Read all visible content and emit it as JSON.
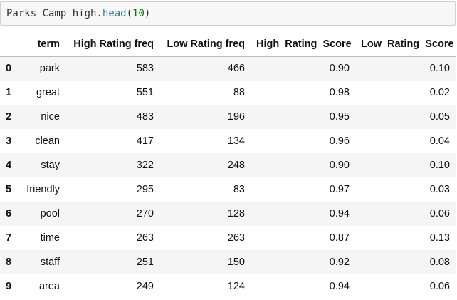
{
  "cell": {
    "var": "Parks_Camp_high",
    "dot": ".",
    "method": "head",
    "open": "(",
    "arg": "10",
    "close": ")"
  },
  "table": {
    "index_header": "",
    "columns": [
      "term",
      "High Rating freq",
      "Low Rating freq",
      "High_Rating_Score",
      "Low_Rating_Score"
    ],
    "rows": [
      {
        "index": "0",
        "cells": [
          "park",
          "583",
          "466",
          "0.90",
          "0.10"
        ]
      },
      {
        "index": "1",
        "cells": [
          "great",
          "551",
          "88",
          "0.98",
          "0.02"
        ]
      },
      {
        "index": "2",
        "cells": [
          "nice",
          "483",
          "196",
          "0.95",
          "0.05"
        ]
      },
      {
        "index": "3",
        "cells": [
          "clean",
          "417",
          "134",
          "0.96",
          "0.04"
        ]
      },
      {
        "index": "4",
        "cells": [
          "stay",
          "322",
          "248",
          "0.90",
          "0.10"
        ]
      },
      {
        "index": "5",
        "cells": [
          "friendly",
          "295",
          "83",
          "0.97",
          "0.03"
        ]
      },
      {
        "index": "6",
        "cells": [
          "pool",
          "270",
          "128",
          "0.94",
          "0.06"
        ]
      },
      {
        "index": "7",
        "cells": [
          "time",
          "263",
          "263",
          "0.87",
          "0.13"
        ]
      },
      {
        "index": "8",
        "cells": [
          "staff",
          "251",
          "150",
          "0.92",
          "0.08"
        ]
      },
      {
        "index": "9",
        "cells": [
          "area",
          "249",
          "124",
          "0.94",
          "0.06"
        ]
      }
    ]
  }
}
